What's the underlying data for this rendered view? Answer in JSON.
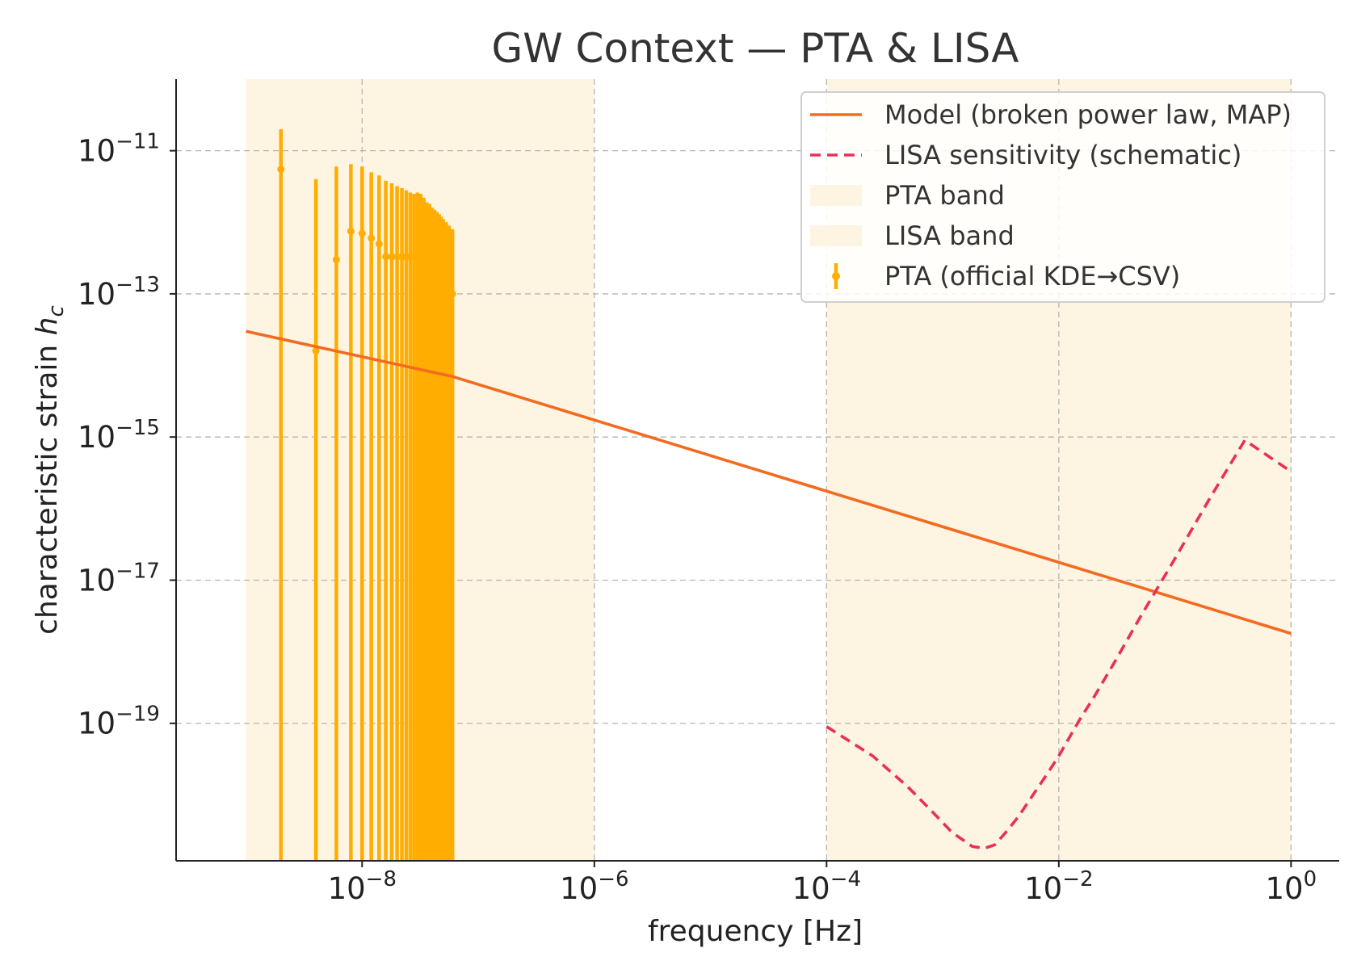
{
  "chart_data": {
    "type": "line",
    "title": "GW Context — PTA & LISA",
    "xlabel": "frequency [Hz]",
    "ylabel_text": "characteristic strain ",
    "ylabel_symbol": "h",
    "ylabel_subscript": "c",
    "xscale": "log",
    "yscale": "log",
    "xlim": [
      2.5e-10,
      2.6
    ],
    "ylim": [
      1.2e-21,
      1e-10
    ],
    "x_ticks": [
      {
        "base": "10",
        "exp": "−8",
        "value": 1e-08
      },
      {
        "base": "10",
        "exp": "−6",
        "value": 1e-06
      },
      {
        "base": "10",
        "exp": "−4",
        "value": 0.0001
      },
      {
        "base": "10",
        "exp": "−2",
        "value": 0.01
      },
      {
        "base": "10",
        "exp": "0",
        "value": 1
      }
    ],
    "y_ticks": [
      {
        "base": "10",
        "exp": "−11",
        "value": 1e-11
      },
      {
        "base": "10",
        "exp": "−13",
        "value": 1e-13
      },
      {
        "base": "10",
        "exp": "−15",
        "value": 1e-15
      },
      {
        "base": "10",
        "exp": "−17",
        "value": 1e-17
      },
      {
        "base": "10",
        "exp": "−19",
        "value": 1e-19
      }
    ],
    "grid": true,
    "legend_position": "top-right",
    "bands": [
      {
        "name": "PTA band",
        "x_range": [
          1e-09,
          1e-06
        ],
        "color": "#fdf4e2"
      },
      {
        "name": "LISA band",
        "x_range": [
          0.0001,
          1
        ],
        "color": "#fdf4e2"
      }
    ],
    "series": [
      {
        "name": "Model (broken power law, MAP)",
        "kind": "line",
        "color": "#f26b21",
        "x": [
          1e-09,
          6e-08,
          1
        ],
        "y": [
          3e-14,
          7e-15,
          1.8e-18
        ]
      },
      {
        "name": "LISA sensitivity (schematic)",
        "kind": "dashed-line",
        "color": "#e8305a",
        "x": [
          0.0001,
          0.00025,
          0.0005,
          0.0008,
          0.0012,
          0.0018,
          0.0023,
          0.0028,
          0.0035,
          0.0045,
          0.006,
          0.008,
          0.01,
          0.015,
          0.02,
          0.03,
          0.05,
          0.1,
          0.2,
          0.4,
          1
        ],
        "y": [
          9e-20,
          3.5e-20,
          1.3e-20,
          6e-21,
          3e-21,
          1.9e-21,
          1.8e-21,
          2e-21,
          3e-21,
          5e-21,
          1e-20,
          2e-20,
          3.5e-20,
          1.1e-19,
          2.3e-19,
          7e-19,
          3e-18,
          2e-17,
          1.4e-16,
          9e-16,
          3.3e-16
        ]
      },
      {
        "name": "PTA (official KDE→CSV)",
        "kind": "errorbar",
        "color": "#ffad00",
        "points": [
          {
            "x": 2e-09,
            "y": 5.5e-12,
            "lo": 1.2e-21,
            "hi": 2e-11
          },
          {
            "x": 4e-09,
            "y": 1.6e-14,
            "lo": 1.2e-21,
            "hi": 4e-12
          },
          {
            "x": 6e-09,
            "y": 3e-13,
            "lo": 1.2e-21,
            "hi": 6e-12
          },
          {
            "x": 8e-09,
            "y": 7.5e-13,
            "lo": 1.2e-21,
            "hi": 6.5e-12
          },
          {
            "x": 1e-08,
            "y": 7e-13,
            "lo": 1.2e-21,
            "hi": 6e-12
          },
          {
            "x": 1.2e-08,
            "y": 6e-13,
            "lo": 1.2e-21,
            "hi": 5e-12
          },
          {
            "x": 1.4e-08,
            "y": 5e-13,
            "lo": 1.2e-21,
            "hi": 4.5e-12
          },
          {
            "x": 1.6e-08,
            "y": 3.3e-13,
            "lo": 1.2e-21,
            "hi": 3.8e-12
          },
          {
            "x": 1.8e-08,
            "y": 3.3e-13,
            "lo": 1.2e-21,
            "hi": 3.5e-12
          },
          {
            "x": 2e-08,
            "y": 3.3e-13,
            "lo": 1.2e-21,
            "hi": 3.2e-12
          },
          {
            "x": 2.2e-08,
            "y": 3.3e-13,
            "lo": 1.2e-21,
            "hi": 3e-12
          },
          {
            "x": 2.4e-08,
            "y": 3.3e-13,
            "lo": 1.2e-21,
            "hi": 2.8e-12
          },
          {
            "x": 2.6e-08,
            "y": 3.3e-13,
            "lo": 1.2e-21,
            "hi": 2.6e-12
          },
          {
            "x": 2.8e-08,
            "y": 3.3e-13,
            "lo": 1.2e-21,
            "hi": 2.5e-12
          },
          {
            "x": 3e-08,
            "y": 3.3e-13,
            "lo": 1.2e-21,
            "hi": 2.6e-12
          },
          {
            "x": 3.2e-08,
            "y": 3.3e-13,
            "lo": 1.2e-21,
            "hi": 2.5e-12
          },
          {
            "x": 3.4e-08,
            "y": 3.3e-13,
            "lo": 1.2e-21,
            "hi": 2.2e-12
          },
          {
            "x": 3.6e-08,
            "y": 3.3e-13,
            "lo": 1.2e-21,
            "hi": 1.9e-12
          },
          {
            "x": 3.8e-08,
            "y": 3.3e-13,
            "lo": 1.2e-21,
            "hi": 1.8e-12
          },
          {
            "x": 4e-08,
            "y": 3.3e-13,
            "lo": 1.2e-21,
            "hi": 1.6e-12
          },
          {
            "x": 4.2e-08,
            "y": 3.3e-13,
            "lo": 1.2e-21,
            "hi": 1.5e-12
          },
          {
            "x": 4.4e-08,
            "y": 3.3e-13,
            "lo": 1.2e-21,
            "hi": 1.4e-12
          },
          {
            "x": 4.6e-08,
            "y": 3.3e-13,
            "lo": 1.2e-21,
            "hi": 1.3e-12
          },
          {
            "x": 4.8e-08,
            "y": 3.3e-13,
            "lo": 1.2e-21,
            "hi": 1.2e-12
          },
          {
            "x": 5e-08,
            "y": 3.3e-13,
            "lo": 1.2e-21,
            "hi": 1.1e-12
          },
          {
            "x": 5.3e-08,
            "y": 3.3e-13,
            "lo": 1.2e-21,
            "hi": 1e-12
          },
          {
            "x": 5.6e-08,
            "y": 3.3e-13,
            "lo": 1.2e-21,
            "hi": 9e-13
          },
          {
            "x": 6e-08,
            "y": 1e-13,
            "lo": 1.2e-21,
            "hi": 8e-13
          }
        ]
      }
    ],
    "legend": [
      {
        "label": "Model (broken power law, MAP)",
        "symbol": "line",
        "color": "#f26b21"
      },
      {
        "label": "LISA sensitivity (schematic)",
        "symbol": "dashed",
        "color": "#e8305a"
      },
      {
        "label": "PTA band",
        "symbol": "patch",
        "color": "#fdf4e2"
      },
      {
        "label": "LISA band",
        "symbol": "patch",
        "color": "#fdf4e2"
      },
      {
        "label": "PTA (official KDE→CSV)",
        "symbol": "errorbar",
        "color": "#ffad00"
      }
    ]
  }
}
